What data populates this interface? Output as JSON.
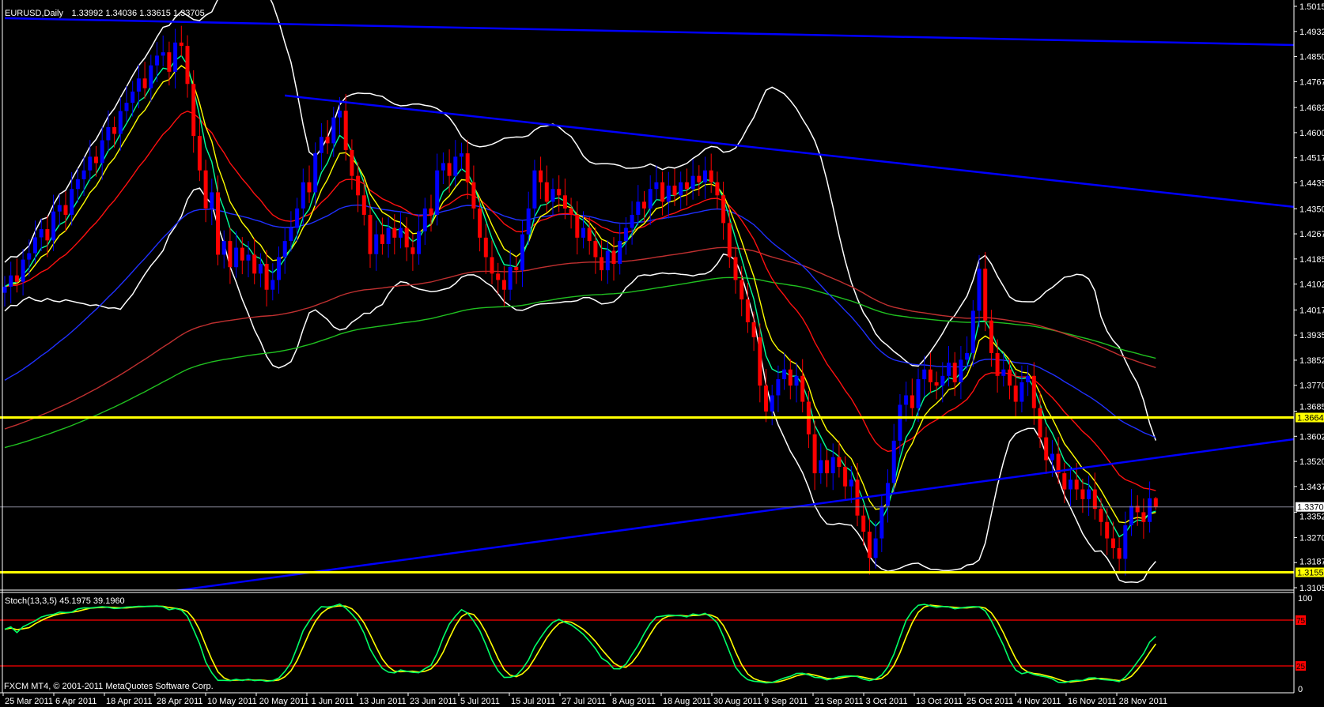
{
  "header": {
    "symbol": "EURUSD,Daily",
    "ohlc": "1.33992 1.34036 1.33615 1.33705"
  },
  "stoch_header": "Stoch(13,3,5) 45.1975 39.1960",
  "copyright": "FXCM MT4, © 2001-2011 MetaQuotes Software Corp.",
  "chart_data": {
    "type": "candlestick",
    "symbol": "EURUSD",
    "timeframe": "Daily",
    "ylim": [
      1.3105,
      1.5015
    ],
    "price_ticks": [
      "1.50150",
      "1.49325",
      "1.48500",
      "1.47675",
      "1.46825",
      "1.46000",
      "1.45175",
      "1.44350",
      "1.43500",
      "1.42675",
      "1.41850",
      "1.41025",
      "1.40175",
      "1.39350",
      "1.38525",
      "1.37700",
      "1.36850",
      "1.36025",
      "1.35200",
      "1.34375",
      "1.33525",
      "1.32700",
      "1.31875",
      "1.31050"
    ],
    "date_ticks": [
      "25 Mar 2011",
      "6 Apr 2011",
      "18 Apr 2011",
      "28 Apr 2011",
      "10 May 2011",
      "20 May 2011",
      "1 Jun 2011",
      "13 Jun 2011",
      "23 Jun 2011",
      "5 Jul 2011",
      "15 Jul 2011",
      "27 Jul 2011",
      "8 Aug 2011",
      "18 Aug 2011",
      "30 Aug 2011",
      "9 Sep 2011",
      "21 Sep 2011",
      "3 Oct 2011",
      "13 Oct 2011",
      "25 Oct 2011",
      "4 Nov 2011",
      "16 Nov 2011",
      "28 Nov 2011"
    ],
    "closes": [
      1.4094,
      1.4131,
      1.411,
      1.4183,
      1.4204,
      1.4256,
      1.4283,
      1.4246,
      1.4341,
      1.4362,
      1.433,
      1.4415,
      1.4447,
      1.4476,
      1.4521,
      1.45,
      1.4575,
      1.4618,
      1.4596,
      1.4671,
      1.4698,
      1.4735,
      1.4778,
      1.4746,
      1.4821,
      1.4853,
      1.4864,
      1.48,
      1.4896,
      1.4885,
      1.476,
      1.4589,
      1.4476,
      1.4351,
      1.4404,
      1.4199,
      1.4244,
      1.4158,
      1.4222,
      1.418,
      1.4199,
      1.4137,
      1.4169,
      1.4084,
      1.4116,
      1.4191,
      1.4244,
      1.4287,
      1.4351,
      1.4437,
      1.4404,
      1.4533,
      1.4586,
      1.4565,
      1.465,
      1.4672,
      1.4543,
      1.4458,
      1.4394,
      1.433,
      1.4201,
      1.4266,
      1.4234,
      1.4287,
      1.4255,
      1.4287,
      1.4223,
      1.4201,
      1.4276,
      1.4351,
      1.433,
      1.4476,
      1.45,
      1.4458,
      1.4521,
      1.4532,
      1.4437,
      1.4351,
      1.4255,
      1.4191,
      1.4137,
      1.4116,
      1.4084,
      1.4159,
      1.4148,
      1.4266,
      1.4351,
      1.4476,
      1.4437,
      1.4373,
      1.4415,
      1.4394,
      1.4351,
      1.433,
      1.4255,
      1.4287,
      1.4244,
      1.4191,
      1.4148,
      1.4212,
      1.4169,
      1.4244,
      1.4287,
      1.433,
      1.4373,
      1.4351,
      1.4415,
      1.4437,
      1.4373,
      1.4426,
      1.4394,
      1.4437,
      1.4415,
      1.4458,
      1.4437,
      1.4476,
      1.4437,
      1.4394,
      1.4303,
      1.4191,
      1.4116,
      1.4052,
      1.3977,
      1.3928,
      1.3769,
      1.3684,
      1.3737,
      1.379,
      1.3822,
      1.3769,
      1.3801,
      1.3716,
      1.3609,
      1.3481,
      1.3524,
      1.3481,
      1.3534,
      1.3502,
      1.3438,
      1.346,
      1.3342,
      1.3289,
      1.3203,
      1.3267,
      1.3374,
      1.3449,
      1.3588,
      1.3706,
      1.3737,
      1.3695,
      1.379,
      1.3822,
      1.378,
      1.3769,
      1.3801,
      1.3844,
      1.378,
      1.3854,
      1.3876,
      1.4015,
      1.4153,
      1.3983,
      1.3876,
      1.3801,
      1.3822,
      1.3769,
      1.3716,
      1.378,
      1.3801,
      1.3695,
      1.3599,
      1.3524,
      1.3545,
      1.3481,
      1.3428,
      1.346,
      1.3428,
      1.3396,
      1.3428,
      1.3364,
      1.3321,
      1.3267,
      1.3235,
      1.32,
      1.331,
      1.3374,
      1.3353,
      1.3321,
      1.3399,
      1.33705
    ],
    "last_bar": {
      "open": 1.33992,
      "high": 1.34036,
      "low": 1.33615,
      "close": 1.33705
    },
    "bid_line": {
      "price": 1.33705,
      "label": "1.33705",
      "color": "#8c8c9c"
    },
    "horizontal_levels": [
      {
        "price": 1.36642,
        "label": "1.36642",
        "color": "#ffff00"
      },
      {
        "price": 1.31556,
        "label": "1.31556",
        "color": "#ffff00"
      }
    ],
    "trendlines": [
      {
        "start_bar": 0,
        "start_price": 1.4976,
        "end_price": 1.4888,
        "color": "#0000ff"
      },
      {
        "start_bar": 46,
        "start_price": 1.4722,
        "end_price": 1.4356,
        "color": "#0000ff"
      },
      {
        "start_bar": 0,
        "start_price": 1.3019,
        "end_price": 1.3593,
        "color": "#0000ff"
      }
    ],
    "candle_colors": {
      "bull": "#0000ff",
      "bear": "#ff0000"
    },
    "moving_averages": [
      {
        "type": "EMA",
        "period": 5,
        "color": "#00ff99"
      },
      {
        "type": "EMA",
        "period": 8,
        "color": "#ffff00"
      },
      {
        "type": "EMA",
        "period": 21,
        "color": "#ff1010"
      },
      {
        "type": "EMA",
        "period": 55,
        "color": "#2030ff",
        "start": 1.3775
      },
      {
        "type": "EMA",
        "period": 144,
        "color": "#c03030",
        "start": 1.362
      },
      {
        "type": "EMA",
        "period": 200,
        "color": "#20c020",
        "start": 1.356
      }
    ],
    "bollinger": {
      "period": 20,
      "deviation": 2,
      "color": "#ffffff"
    },
    "stochastic": {
      "k": 13,
      "d": 3,
      "slowing": 5,
      "main_value": 45.1975,
      "signal_value": 39.196,
      "main_color": "#00ff66",
      "signal_color": "#ffff00",
      "levels": [
        {
          "value": 75,
          "label": "75"
        },
        {
          "value": 25,
          "label": "25"
        }
      ],
      "scale_labels": [
        "100",
        "0"
      ],
      "ylim": [
        0,
        100
      ]
    }
  }
}
